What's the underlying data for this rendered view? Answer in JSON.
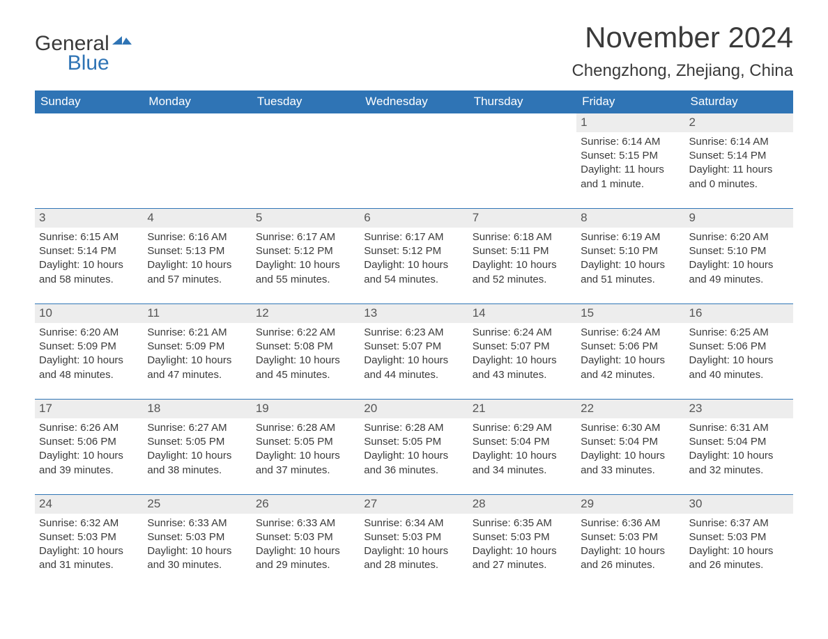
{
  "logo": {
    "word1": "General",
    "word2": "Blue",
    "mark_color": "#2f74b5"
  },
  "title": "November 2024",
  "location": "Chengzhong, Zhejiang, China",
  "colors": {
    "header_bg": "#2f74b5",
    "header_text": "#ffffff",
    "daynum_bg": "#ededed",
    "week_border": "#2f74b5",
    "body_text": "#3a3a3a",
    "page_bg": "#ffffff"
  },
  "fonts": {
    "title_size": 42,
    "location_size": 24,
    "weekday_size": 17,
    "body_size": 15
  },
  "weekdays": [
    "Sunday",
    "Monday",
    "Tuesday",
    "Wednesday",
    "Thursday",
    "Friday",
    "Saturday"
  ],
  "labels": {
    "sunrise": "Sunrise",
    "sunset": "Sunset",
    "daylight": "Daylight"
  },
  "weeks": [
    [
      null,
      null,
      null,
      null,
      null,
      {
        "n": 1,
        "sunrise": "6:14 AM",
        "sunset": "5:15 PM",
        "daylight": "11 hours and 1 minute."
      },
      {
        "n": 2,
        "sunrise": "6:14 AM",
        "sunset": "5:14 PM",
        "daylight": "11 hours and 0 minutes."
      }
    ],
    [
      {
        "n": 3,
        "sunrise": "6:15 AM",
        "sunset": "5:14 PM",
        "daylight": "10 hours and 58 minutes."
      },
      {
        "n": 4,
        "sunrise": "6:16 AM",
        "sunset": "5:13 PM",
        "daylight": "10 hours and 57 minutes."
      },
      {
        "n": 5,
        "sunrise": "6:17 AM",
        "sunset": "5:12 PM",
        "daylight": "10 hours and 55 minutes."
      },
      {
        "n": 6,
        "sunrise": "6:17 AM",
        "sunset": "5:12 PM",
        "daylight": "10 hours and 54 minutes."
      },
      {
        "n": 7,
        "sunrise": "6:18 AM",
        "sunset": "5:11 PM",
        "daylight": "10 hours and 52 minutes."
      },
      {
        "n": 8,
        "sunrise": "6:19 AM",
        "sunset": "5:10 PM",
        "daylight": "10 hours and 51 minutes."
      },
      {
        "n": 9,
        "sunrise": "6:20 AM",
        "sunset": "5:10 PM",
        "daylight": "10 hours and 49 minutes."
      }
    ],
    [
      {
        "n": 10,
        "sunrise": "6:20 AM",
        "sunset": "5:09 PM",
        "daylight": "10 hours and 48 minutes."
      },
      {
        "n": 11,
        "sunrise": "6:21 AM",
        "sunset": "5:09 PM",
        "daylight": "10 hours and 47 minutes."
      },
      {
        "n": 12,
        "sunrise": "6:22 AM",
        "sunset": "5:08 PM",
        "daylight": "10 hours and 45 minutes."
      },
      {
        "n": 13,
        "sunrise": "6:23 AM",
        "sunset": "5:07 PM",
        "daylight": "10 hours and 44 minutes."
      },
      {
        "n": 14,
        "sunrise": "6:24 AM",
        "sunset": "5:07 PM",
        "daylight": "10 hours and 43 minutes."
      },
      {
        "n": 15,
        "sunrise": "6:24 AM",
        "sunset": "5:06 PM",
        "daylight": "10 hours and 42 minutes."
      },
      {
        "n": 16,
        "sunrise": "6:25 AM",
        "sunset": "5:06 PM",
        "daylight": "10 hours and 40 minutes."
      }
    ],
    [
      {
        "n": 17,
        "sunrise": "6:26 AM",
        "sunset": "5:06 PM",
        "daylight": "10 hours and 39 minutes."
      },
      {
        "n": 18,
        "sunrise": "6:27 AM",
        "sunset": "5:05 PM",
        "daylight": "10 hours and 38 minutes."
      },
      {
        "n": 19,
        "sunrise": "6:28 AM",
        "sunset": "5:05 PM",
        "daylight": "10 hours and 37 minutes."
      },
      {
        "n": 20,
        "sunrise": "6:28 AM",
        "sunset": "5:05 PM",
        "daylight": "10 hours and 36 minutes."
      },
      {
        "n": 21,
        "sunrise": "6:29 AM",
        "sunset": "5:04 PM",
        "daylight": "10 hours and 34 minutes."
      },
      {
        "n": 22,
        "sunrise": "6:30 AM",
        "sunset": "5:04 PM",
        "daylight": "10 hours and 33 minutes."
      },
      {
        "n": 23,
        "sunrise": "6:31 AM",
        "sunset": "5:04 PM",
        "daylight": "10 hours and 32 minutes."
      }
    ],
    [
      {
        "n": 24,
        "sunrise": "6:32 AM",
        "sunset": "5:03 PM",
        "daylight": "10 hours and 31 minutes."
      },
      {
        "n": 25,
        "sunrise": "6:33 AM",
        "sunset": "5:03 PM",
        "daylight": "10 hours and 30 minutes."
      },
      {
        "n": 26,
        "sunrise": "6:33 AM",
        "sunset": "5:03 PM",
        "daylight": "10 hours and 29 minutes."
      },
      {
        "n": 27,
        "sunrise": "6:34 AM",
        "sunset": "5:03 PM",
        "daylight": "10 hours and 28 minutes."
      },
      {
        "n": 28,
        "sunrise": "6:35 AM",
        "sunset": "5:03 PM",
        "daylight": "10 hours and 27 minutes."
      },
      {
        "n": 29,
        "sunrise": "6:36 AM",
        "sunset": "5:03 PM",
        "daylight": "10 hours and 26 minutes."
      },
      {
        "n": 30,
        "sunrise": "6:37 AM",
        "sunset": "5:03 PM",
        "daylight": "10 hours and 26 minutes."
      }
    ]
  ]
}
